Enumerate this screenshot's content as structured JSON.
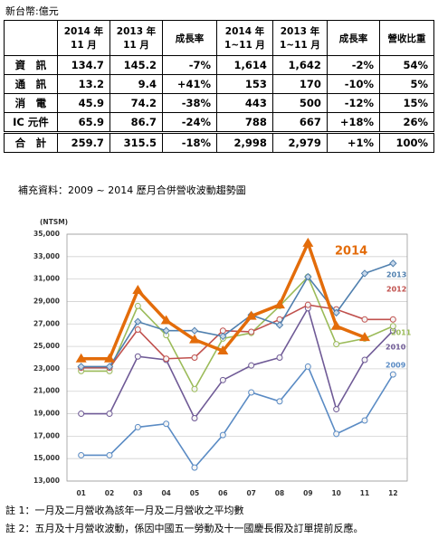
{
  "unit": "新台幣:億元",
  "table": {
    "header": [
      "",
      "2014 年\n11 月",
      "2013 年\n11 月",
      "成長率",
      "2014 年\n1~11 月",
      "2013 年\n1~11 月",
      "成長率",
      "營收比重"
    ],
    "rows": [
      [
        "資　訊",
        "134.7",
        "145.2",
        "-7%",
        "1,614",
        "1,642",
        "-2%",
        "54%"
      ],
      [
        "通　訊",
        "13.2",
        "9.4",
        "+41%",
        "153",
        "170",
        "-10%",
        "5%"
      ],
      [
        "消　電",
        "45.9",
        "74.2",
        "-38%",
        "443",
        "500",
        "-12%",
        "15%"
      ],
      [
        "IC 元件",
        "65.9",
        "86.7",
        "-24%",
        "788",
        "667",
        "+18%",
        "26%"
      ],
      [
        "合　計",
        "259.7",
        "315.5",
        "-18%",
        "2,998",
        "2,979",
        "+1%",
        "100%"
      ]
    ]
  },
  "supplement_title": "補充資料：2009 ~ 2014 歷月合併營收波動趨勢圖",
  "chart_data": {
    "type": "line",
    "y_label": "(NTSM)",
    "categories": [
      "01",
      "02",
      "03",
      "04",
      "05",
      "06",
      "07",
      "08",
      "09",
      "10",
      "11",
      "12"
    ],
    "series": [
      {
        "name": "2014",
        "color": "#e36c0a",
        "marker": "triangle",
        "values": [
          23900,
          23900,
          30000,
          27300,
          25600,
          24600,
          27700,
          28700,
          34200,
          26800,
          25800,
          null
        ]
      },
      {
        "name": "2013",
        "color": "#4f7fae",
        "marker": "diamond",
        "values": [
          23200,
          23200,
          27200,
          26400,
          26400,
          25900,
          27800,
          26900,
          31200,
          28000,
          31500,
          32400
        ]
      },
      {
        "name": "2012",
        "color": "#c0504d",
        "marker": "circle",
        "values": [
          23100,
          23100,
          26500,
          23900,
          24000,
          26400,
          26300,
          27400,
          28700,
          28300,
          27400,
          27400
        ]
      },
      {
        "name": "2011",
        "color": "#9bbb59",
        "marker": "circle",
        "values": [
          22800,
          22800,
          28600,
          26000,
          21200,
          25700,
          26200,
          28600,
          31200,
          25200,
          25700,
          26800
        ]
      },
      {
        "name": "2010",
        "color": "#6f5a96",
        "marker": "circle",
        "values": [
          19000,
          19000,
          24100,
          23800,
          18600,
          22000,
          23300,
          24000,
          28400,
          19400,
          23800,
          26400
        ]
      },
      {
        "name": "2009",
        "color": "#5a8bc4",
        "marker": "circle",
        "values": [
          15300,
          15300,
          17800,
          18100,
          14200,
          17100,
          20900,
          20100,
          23200,
          17200,
          18400,
          22500
        ]
      }
    ],
    "ylim": [
      13000,
      35000
    ],
    "yticks": [
      {
        "value": 13000,
        "label": "13,000"
      },
      {
        "value": 15000,
        "label": "15,000"
      },
      {
        "value": 17000,
        "label": "17,000"
      },
      {
        "value": 19000,
        "label": "19,000"
      },
      {
        "value": 21000,
        "label": "21,000"
      },
      {
        "value": 23000,
        "label": "23,000"
      },
      {
        "value": 25000,
        "label": "25,000"
      },
      {
        "value": 27000,
        "label": "27,000"
      },
      {
        "value": 29000,
        "label": "29,000"
      },
      {
        "value": 31000,
        "label": "31,000"
      },
      {
        "value": 33000,
        "label": "33,000"
      },
      {
        "value": 35000,
        "label": "35,000"
      }
    ],
    "grid": true
  },
  "notes": [
    "註 1：一月及二月營收為該年一月及二月營收之平均數",
    "註 2：五月及十月營收波動，係因中國五一勞動及十一國慶長假及訂單提前反應。"
  ]
}
